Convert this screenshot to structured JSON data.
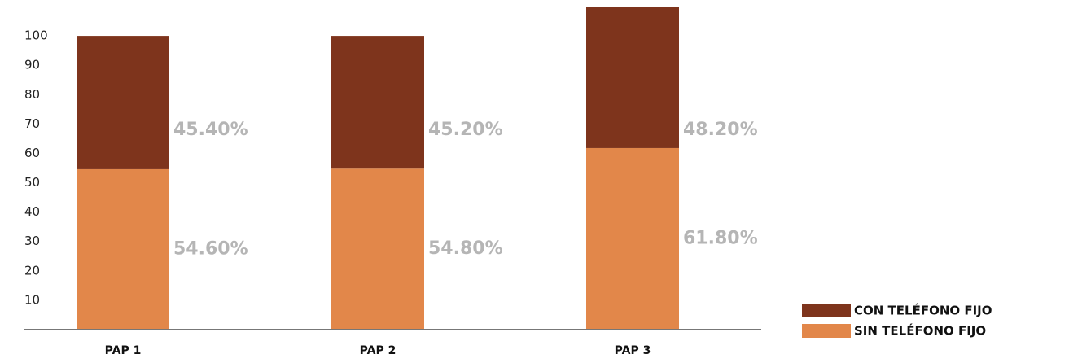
{
  "chart_data": {
    "type": "stacked_bar",
    "categories": [
      "PAP 1",
      "PAP 2",
      "PAP 3"
    ],
    "series": [
      {
        "name": "SIN TELÉFONO FIJO",
        "color": "#e2874a",
        "values": [
          54.6,
          54.8,
          61.8
        ],
        "value_labels": [
          "54.60%",
          "54.80%",
          "61.80%"
        ]
      },
      {
        "name": "CON TELÉFONO FIJO",
        "color": "#7e341c",
        "values": [
          45.4,
          45.2,
          48.2
        ],
        "value_labels": [
          "45.40%",
          "45.20%",
          "48.20%"
        ]
      }
    ],
    "ylim": [
      0,
      110
    ],
    "yticks": [
      10,
      20,
      30,
      40,
      50,
      60,
      70,
      80,
      90,
      100
    ],
    "legend": "bottom-right"
  }
}
